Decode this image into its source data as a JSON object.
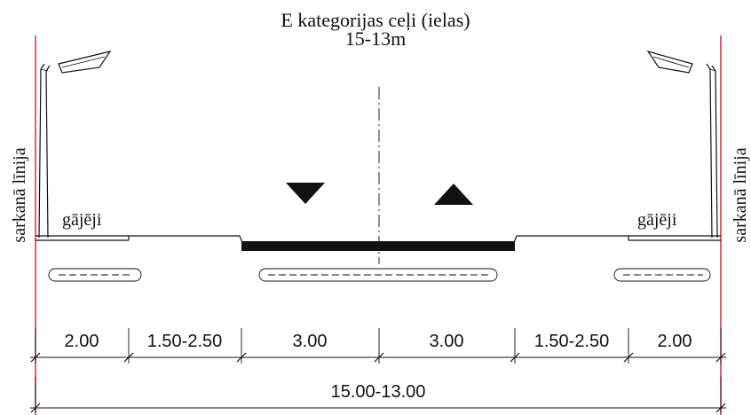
{
  "title": {
    "line1": "E kategorijas ceļi (ielas)",
    "line2": "15-13m"
  },
  "red_line_label_left": "sarkanā līnija",
  "red_line_label_right": "sarkanā līnija",
  "pedestrian_label_left": "gājēji",
  "pedestrian_label_right": "gājēji",
  "lane_arrows": {
    "left": "down-triangle",
    "right": "up-triangle"
  },
  "dimensions": {
    "segments": [
      "2.00",
      "1.50-2.50",
      "3.00",
      "3.00",
      "1.50-2.50",
      "2.00"
    ],
    "total": "15.00-13.00"
  },
  "colors": {
    "red_line": "#d11f2b",
    "drawing": "#111111"
  }
}
